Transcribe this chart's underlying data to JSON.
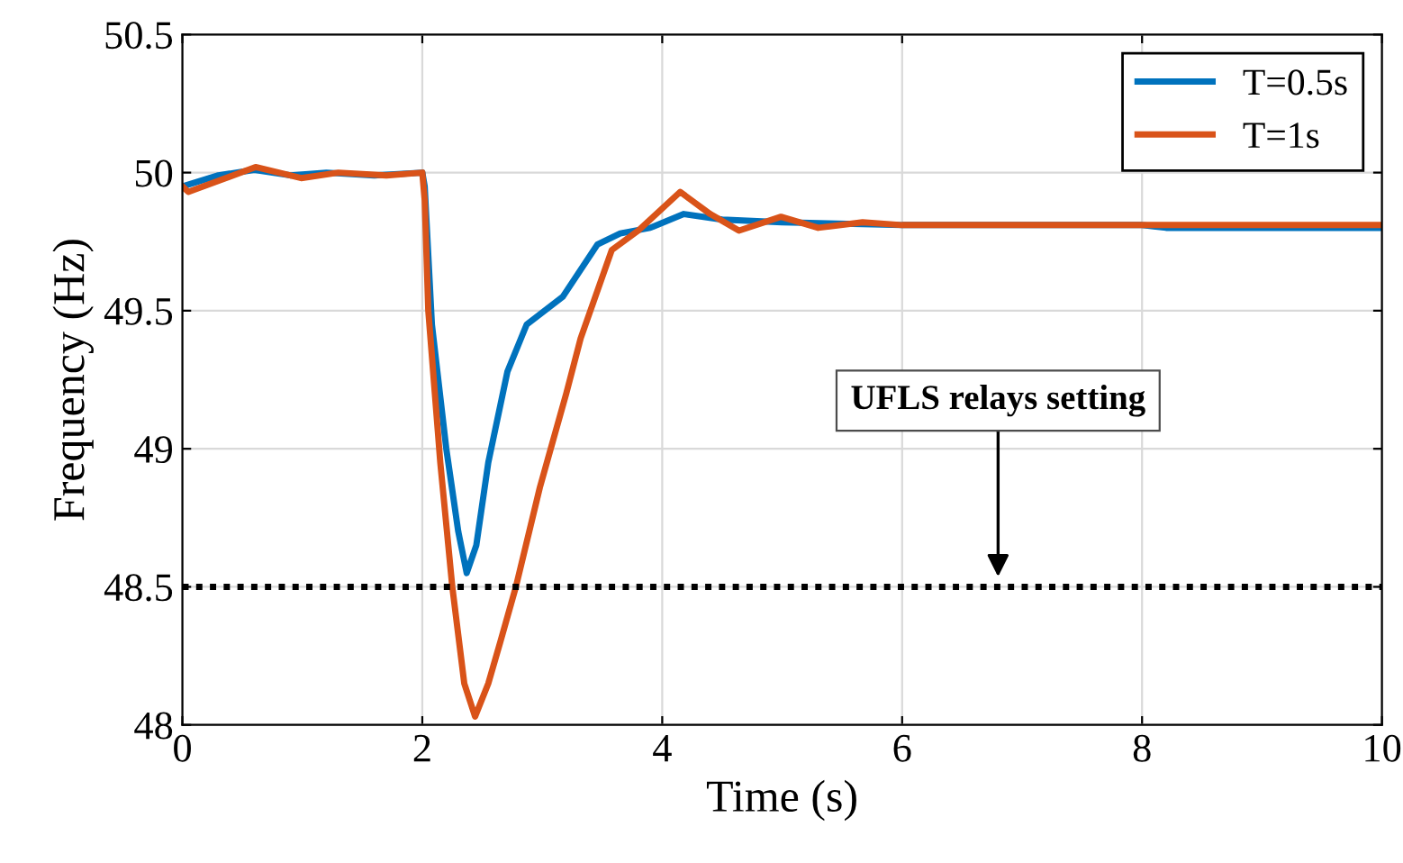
{
  "chart_data": {
    "type": "line",
    "xlabel": "Time (s)",
    "ylabel": "Frequency (Hz)",
    "xlim": [
      0,
      10
    ],
    "ylim": [
      48,
      50.5
    ],
    "xticks": [
      0,
      2,
      4,
      6,
      8,
      10
    ],
    "yticks": [
      48,
      48.5,
      49,
      49.5,
      50,
      50.5
    ],
    "grid": true,
    "legend": "top right",
    "line_style": "solid",
    "marker": "none",
    "series": [
      {
        "name": "T=0.5s",
        "color": "#0072bd",
        "x": [
          0,
          0.3,
          0.6,
          0.9,
          1.2,
          1.6,
          2.0,
          2.02,
          2.08,
          2.2,
          2.3,
          2.37,
          2.45,
          2.55,
          2.71,
          2.87,
          3.17,
          3.46,
          3.65,
          3.9,
          4.18,
          4.5,
          5.0,
          6.0,
          8.0,
          8.2,
          10
        ],
        "values": [
          49.95,
          49.99,
          50.01,
          49.99,
          50.0,
          49.99,
          50.0,
          49.95,
          49.45,
          49.0,
          48.7,
          48.55,
          48.65,
          48.95,
          49.28,
          49.45,
          49.55,
          49.74,
          49.78,
          49.8,
          49.85,
          49.83,
          49.82,
          49.81,
          49.81,
          49.8,
          49.8
        ]
      },
      {
        "name": "T=1s",
        "color": "#d95319",
        "x": [
          0,
          0.05,
          0.3,
          0.61,
          0.99,
          1.3,
          1.7,
          2.0,
          2.02,
          2.05,
          2.15,
          2.25,
          2.35,
          2.44,
          2.55,
          2.65,
          2.78,
          2.98,
          3.2,
          3.32,
          3.58,
          3.8,
          4.15,
          4.4,
          4.64,
          4.99,
          5.3,
          5.67,
          6.0,
          8.0,
          10
        ],
        "values": [
          49.95,
          49.93,
          49.97,
          50.02,
          49.98,
          50.0,
          49.99,
          50.0,
          49.9,
          49.5,
          48.95,
          48.5,
          48.15,
          48.03,
          48.15,
          48.3,
          48.5,
          48.86,
          49.2,
          49.4,
          49.72,
          49.79,
          49.93,
          49.85,
          49.79,
          49.84,
          49.8,
          49.82,
          49.81,
          49.81,
          49.81
        ]
      }
    ],
    "ref_lines": [
      {
        "axis": "y",
        "value": 48.5,
        "color": "#000000",
        "line_style": "dotted"
      }
    ],
    "annotations": [
      "UFLS relays setting"
    ]
  }
}
